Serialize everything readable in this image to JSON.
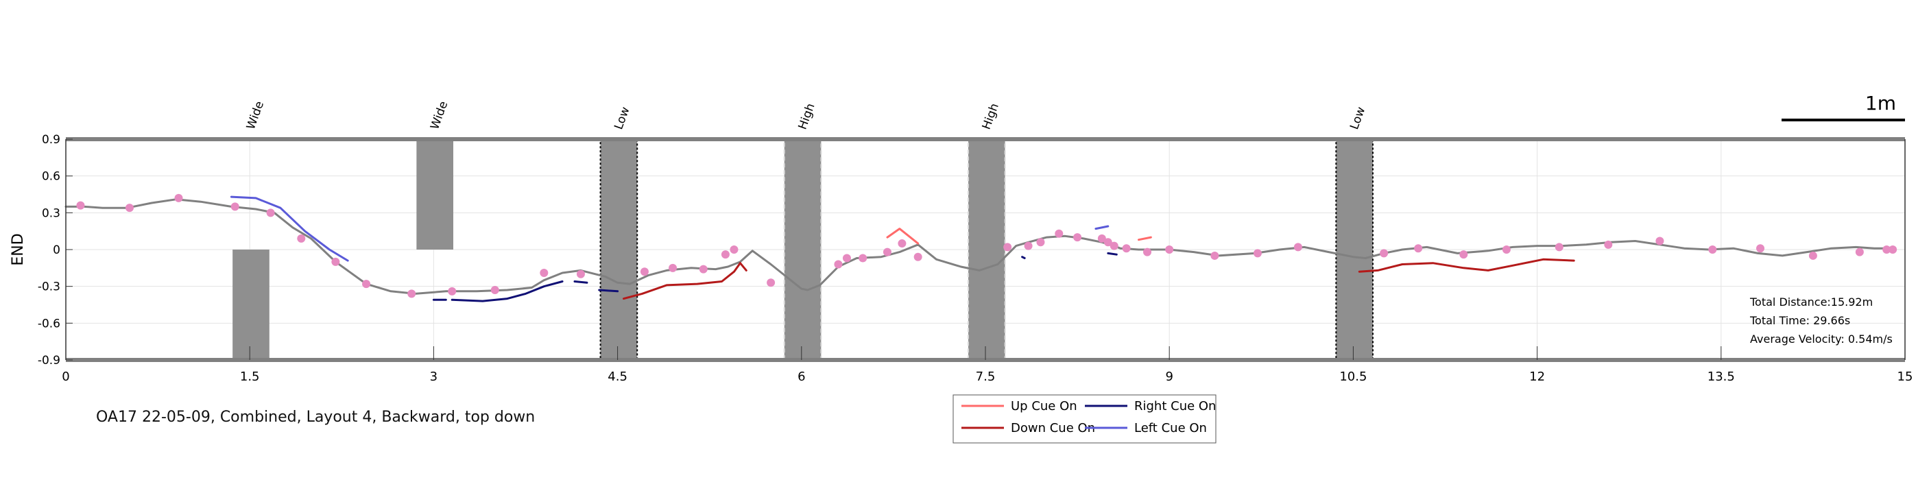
{
  "caption": "OA17 22-05-09, Combined, Layout 4, Backward, top down",
  "chart_data": {
    "type": "line",
    "xlabel": "",
    "ylabel": "END",
    "xlim": [
      0,
      15
    ],
    "ylim": [
      -0.9,
      0.9
    ],
    "x_ticks": [
      "0",
      "1.5",
      "3",
      "4.5",
      "6",
      "7.5",
      "9",
      "10.5",
      "12",
      "13.5",
      "15"
    ],
    "x_tick_values": [
      0,
      1.5,
      3,
      4.5,
      6,
      7.5,
      9,
      10.5,
      12,
      13.5,
      15
    ],
    "y_ticks": [
      "0.9",
      "0.6",
      "0.3",
      "0",
      "-0.3",
      "-0.6",
      "-0.9"
    ],
    "y_tick_values": [
      0.9,
      0.6,
      0.3,
      0,
      -0.3,
      -0.6,
      -0.9
    ],
    "grid": true,
    "scale_bar_label": "1m",
    "obstacles": [
      {
        "label": "Wide",
        "x0": 1.36,
        "x1": 1.66,
        "y0": -0.9,
        "y1": 0.0,
        "style": "gate"
      },
      {
        "label": "Wide",
        "x0": 2.86,
        "x1": 3.16,
        "y0": 0.0,
        "y1": 0.9,
        "style": "gate"
      },
      {
        "label": "Low",
        "x0": 4.36,
        "x1": 4.66,
        "y0": -0.9,
        "y1": 0.9,
        "style": "low"
      },
      {
        "label": "High",
        "x0": 5.86,
        "x1": 6.16,
        "y0": -0.9,
        "y1": 0.9,
        "style": "high"
      },
      {
        "label": "High",
        "x0": 7.36,
        "x1": 7.66,
        "y0": -0.9,
        "y1": 0.9,
        "style": "high"
      },
      {
        "label": "Low",
        "x0": 10.36,
        "x1": 10.66,
        "y0": -0.9,
        "y1": 0.9,
        "style": "low"
      }
    ],
    "series": [
      {
        "name": "trajectory",
        "color": "#808080",
        "x": [
          0,
          0.15,
          0.3,
          0.5,
          0.7,
          0.9,
          1.1,
          1.35,
          1.55,
          1.7,
          1.85,
          2.0,
          2.2,
          2.45,
          2.65,
          2.85,
          3.1,
          3.35,
          3.6,
          3.8,
          3.9,
          4.05,
          4.2,
          4.4,
          4.5,
          4.6,
          4.75,
          4.9,
          5.1,
          5.3,
          5.4,
          5.5,
          5.6,
          5.75,
          5.9,
          6.0,
          6.05,
          6.15,
          6.3,
          6.45,
          6.65,
          6.8,
          6.95,
          7.1,
          7.3,
          7.45,
          7.6,
          7.75,
          7.85,
          8.0,
          8.15,
          8.3,
          8.45,
          8.55,
          8.6,
          8.75,
          9.0,
          9.2,
          9.4,
          9.7,
          9.9,
          10.1,
          10.3,
          10.5,
          10.6,
          10.75,
          10.9,
          11.1,
          11.35,
          11.6,
          11.8,
          12.0,
          12.2,
          12.4,
          12.6,
          12.8,
          13.0,
          13.2,
          13.4,
          13.6,
          13.8,
          14.0,
          14.2,
          14.4,
          14.6,
          14.75,
          14.85
        ],
        "y": [
          0.35,
          0.35,
          0.34,
          0.34,
          0.38,
          0.41,
          0.39,
          0.35,
          0.33,
          0.3,
          0.18,
          0.09,
          -0.1,
          -0.28,
          -0.34,
          -0.36,
          -0.34,
          -0.34,
          -0.33,
          -0.31,
          -0.25,
          -0.19,
          -0.17,
          -0.22,
          -0.27,
          -0.28,
          -0.21,
          -0.17,
          -0.15,
          -0.16,
          -0.14,
          -0.1,
          -0.01,
          -0.12,
          -0.24,
          -0.32,
          -0.33,
          -0.29,
          -0.14,
          -0.07,
          -0.06,
          -0.02,
          0.04,
          -0.08,
          -0.14,
          -0.17,
          -0.12,
          0.03,
          0.06,
          0.1,
          0.11,
          0.09,
          0.06,
          0.03,
          0.01,
          0.0,
          0.0,
          -0.02,
          -0.05,
          -0.03,
          0.0,
          0.02,
          -0.02,
          -0.06,
          -0.07,
          -0.03,
          0.0,
          0.02,
          -0.03,
          -0.01,
          0.02,
          0.03,
          0.03,
          0.04,
          0.06,
          0.07,
          0.04,
          0.01,
          0.0,
          0.01,
          -0.03,
          -0.05,
          -0.02,
          0.01,
          0.02,
          0.01,
          0.01
        ]
      },
      {
        "name": "Up Cue On",
        "color": "#ff6a6a",
        "segments": [
          {
            "x": [
              6.7,
              6.8,
              6.95
            ],
            "y": [
              0.1,
              0.17,
              0.05
            ]
          },
          {
            "x": [
              8.75,
              8.85
            ],
            "y": [
              0.08,
              0.1
            ]
          }
        ]
      },
      {
        "name": "Down Cue On",
        "color": "#b41a1a",
        "segments": [
          {
            "x": [
              4.55,
              4.7,
              4.9,
              5.15,
              5.35,
              5.45,
              5.5
            ],
            "y": [
              -0.4,
              -0.36,
              -0.29,
              -0.28,
              -0.26,
              -0.18,
              -0.11
            ]
          },
          {
            "x": [
              5.5,
              5.55
            ],
            "y": [
              -0.11,
              -0.17
            ]
          },
          {
            "x": [
              10.55,
              10.7,
              10.9,
              11.15,
              11.4,
              11.6,
              11.8,
              12.05,
              12.3
            ],
            "y": [
              -0.18,
              -0.17,
              -0.12,
              -0.11,
              -0.15,
              -0.17,
              -0.13,
              -0.08,
              -0.09
            ]
          }
        ]
      },
      {
        "name": "Right Cue On",
        "color": "#101075",
        "segments": [
          {
            "x": [
              3.0,
              3.1
            ],
            "y": [
              -0.41,
              -0.41
            ]
          },
          {
            "x": [
              3.15,
              3.4,
              3.6,
              3.75,
              3.9,
              4.05
            ],
            "y": [
              -0.41,
              -0.42,
              -0.4,
              -0.36,
              -0.3,
              -0.26
            ]
          },
          {
            "x": [
              4.15,
              4.25
            ],
            "y": [
              -0.26,
              -0.27
            ]
          },
          {
            "x": [
              4.35,
              4.5
            ],
            "y": [
              -0.33,
              -0.34
            ]
          },
          {
            "x": [
              7.8,
              7.82
            ],
            "y": [
              -0.06,
              -0.07
            ]
          },
          {
            "x": [
              8.5,
              8.57
            ],
            "y": [
              -0.03,
              -0.04
            ]
          }
        ]
      },
      {
        "name": "Left Cue On",
        "color": "#5a5ad8",
        "segments": [
          {
            "x": [
              1.35,
              1.55,
              1.75,
              1.95,
              2.15,
              2.3
            ],
            "y": [
              0.43,
              0.42,
              0.34,
              0.15,
              0.0,
              -0.09
            ]
          },
          {
            "x": [
              8.4,
              8.5
            ],
            "y": [
              0.17,
              0.19
            ]
          }
        ]
      }
    ],
    "markers": {
      "color": "#e68ac0",
      "x": [
        0.12,
        0.52,
        0.92,
        1.38,
        1.67,
        1.92,
        2.2,
        2.45,
        2.82,
        3.15,
        3.5,
        3.9,
        4.2,
        4.72,
        4.95,
        5.2,
        5.38,
        5.45,
        5.75,
        6.3,
        6.37,
        6.5,
        6.7,
        6.82,
        6.95,
        7.68,
        7.85,
        7.95,
        8.1,
        8.25,
        8.45,
        8.5,
        8.55,
        8.65,
        8.82,
        9.0,
        9.37,
        9.72,
        10.05,
        10.75,
        11.03,
        11.4,
        11.75,
        12.18,
        12.58,
        13.0,
        13.43,
        13.82,
        14.25,
        14.63,
        14.85,
        14.9
      ],
      "y": [
        0.36,
        0.34,
        0.42,
        0.35,
        0.3,
        0.09,
        -0.1,
        -0.28,
        -0.36,
        -0.34,
        -0.33,
        -0.19,
        -0.2,
        -0.18,
        -0.15,
        -0.16,
        -0.04,
        0.0,
        -0.27,
        -0.12,
        -0.07,
        -0.07,
        -0.02,
        0.05,
        -0.06,
        0.02,
        0.03,
        0.06,
        0.13,
        0.1,
        0.09,
        0.06,
        0.03,
        0.01,
        -0.02,
        0.0,
        -0.05,
        -0.03,
        0.02,
        -0.03,
        0.01,
        -0.04,
        0.0,
        0.02,
        0.04,
        0.07,
        0.0,
        0.01,
        -0.05,
        -0.02,
        0.0,
        0.0
      ]
    },
    "stats": [
      "Total Distance:15.92m",
      "Total Time: 29.66s",
      "Average Velocity: 0.54m/s"
    ],
    "legend": {
      "placement": "bottom-center",
      "entries": [
        "Up Cue On",
        "Right Cue On",
        "Down Cue On",
        "Left Cue On"
      ],
      "colors": [
        "#ff6a6a",
        "#101075",
        "#b41a1a",
        "#5a5ad8"
      ]
    }
  }
}
